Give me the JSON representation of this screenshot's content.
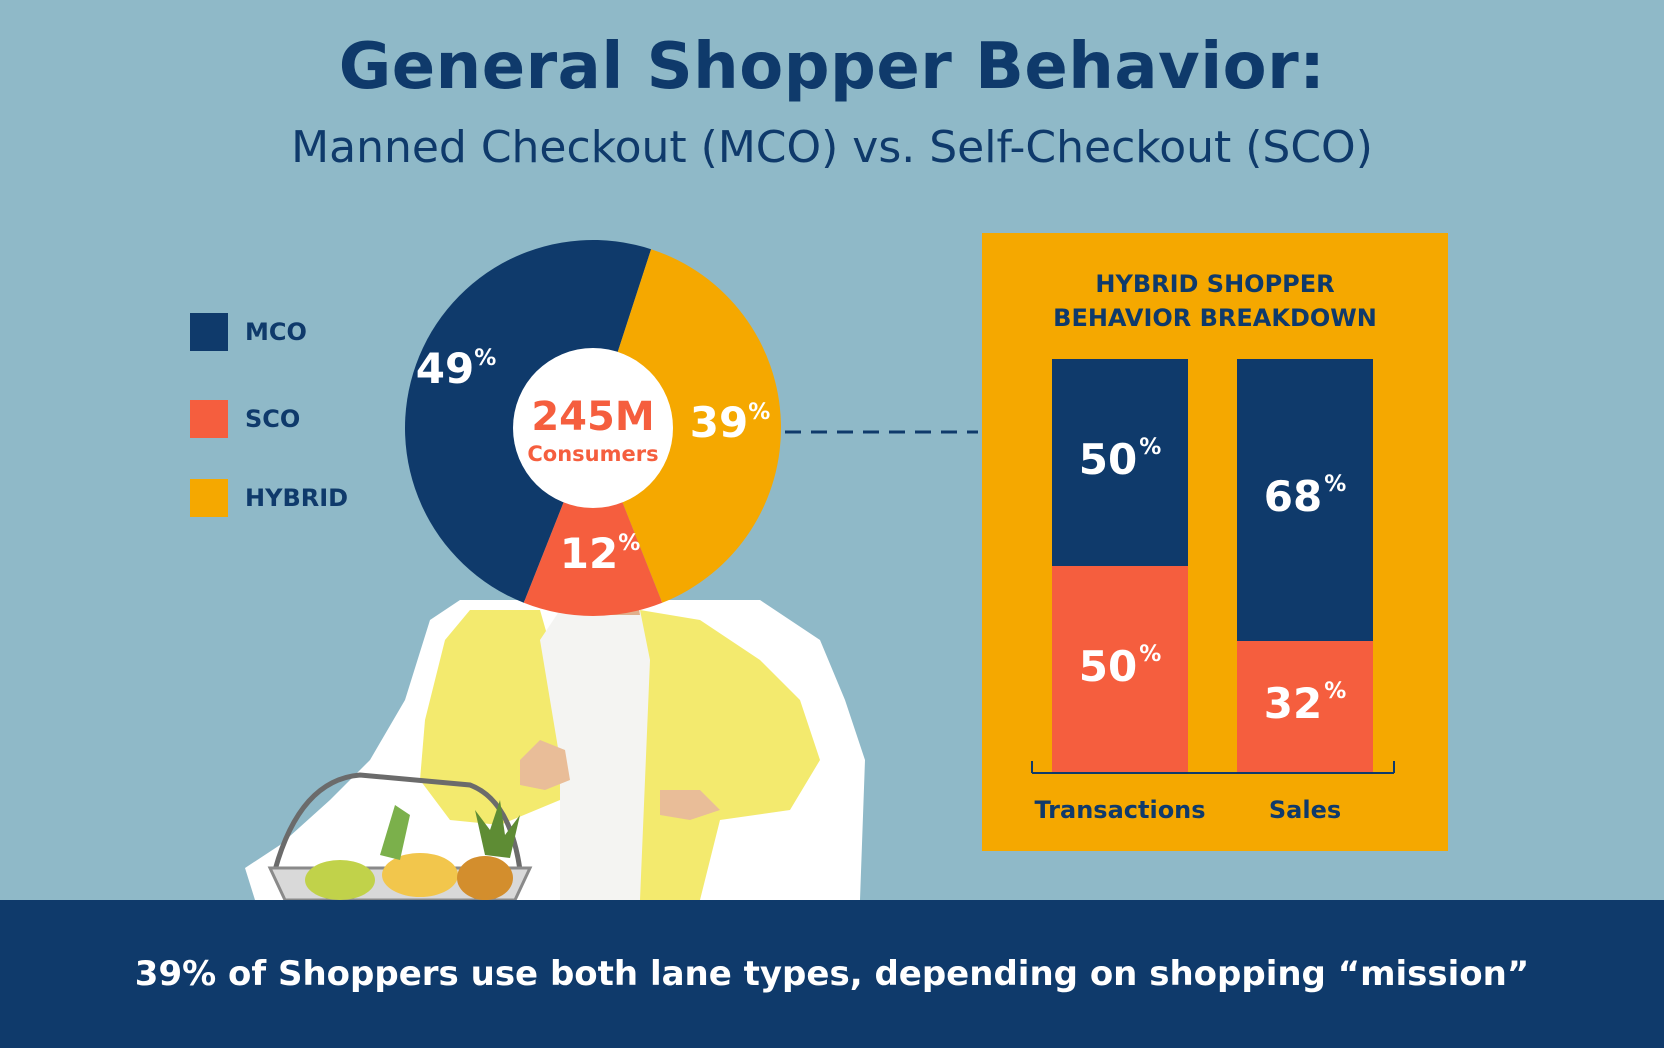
{
  "header": {
    "title": "General Shopper Behavior:",
    "subtitle": "Manned Checkout (MCO) vs. Self-Checkout (SCO)"
  },
  "colors": {
    "mco": "#0f3a6b",
    "sco": "#f55e3e",
    "hybrid": "#f5a800",
    "background": "#8fb9c8"
  },
  "legend": [
    {
      "label": "MCO",
      "color": "#0f3a6b"
    },
    {
      "label": "SCO",
      "color": "#f55e3e"
    },
    {
      "label": "HYBRID",
      "color": "#f5a800"
    }
  ],
  "center": {
    "value": "245M",
    "label": "Consumers"
  },
  "breakdown": {
    "title_line1": "HYBRID SHOPPER",
    "title_line2": "BEHAVIOR BREAKDOWN"
  },
  "footer": {
    "text": "39% of Shoppers use both lane types, depending on shopping “mission”"
  },
  "chart_data": [
    {
      "type": "pie",
      "categories": [
        "MCO",
        "HYBRID",
        "SCO"
      ],
      "values": [
        49,
        39,
        12
      ],
      "unit": "%",
      "center_text": "245M Consumers"
    },
    {
      "type": "bar",
      "stacked": true,
      "title": "HYBRID SHOPPER BEHAVIOR BREAKDOWN",
      "categories": [
        "Transactions",
        "Sales"
      ],
      "series": [
        {
          "name": "MCO",
          "values": [
            50,
            68
          ]
        },
        {
          "name": "SCO",
          "values": [
            50,
            32
          ]
        }
      ],
      "unit": "%"
    }
  ]
}
